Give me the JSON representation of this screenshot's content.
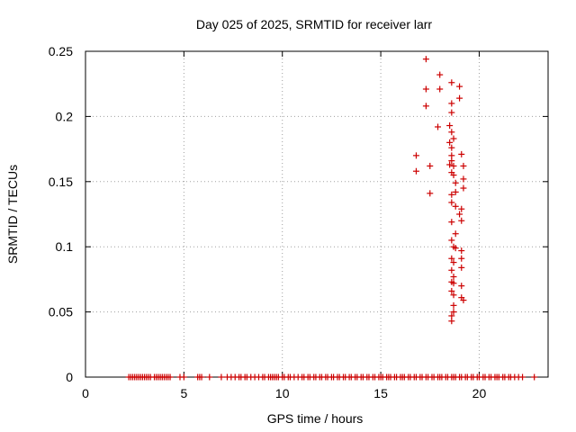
{
  "chart_data": {
    "type": "scatter",
    "title": "Day 025 of 2025, SRMTID for receiver larr",
    "xlabel": "GPS time / hours",
    "ylabel": "SRMTID / TECUs",
    "xlim": [
      0,
      23.5
    ],
    "ylim": [
      0,
      0.25
    ],
    "xticks": [
      0,
      5,
      10,
      15,
      20
    ],
    "xtick_labels": [
      "0",
      "5",
      "10",
      "15",
      "20"
    ],
    "yticks": [
      0,
      0.05,
      0.1,
      0.15,
      0.2,
      0.25
    ],
    "ytick_labels": [
      "0",
      "0.05",
      "0.1",
      "0.15",
      "0.2",
      "0.25"
    ],
    "grid": true,
    "marker": "+",
    "series": [
      {
        "name": "SRMTID",
        "color": "#cc0000",
        "zero_x": [
          2.2,
          2.3,
          2.4,
          2.5,
          2.6,
          2.7,
          2.8,
          2.9,
          3.0,
          3.1,
          3.2,
          3.3,
          3.5,
          3.6,
          3.7,
          3.8,
          3.9,
          4.0,
          4.1,
          4.2,
          4.3,
          4.8,
          5.0,
          5.7,
          5.8,
          5.9,
          6.3,
          6.9,
          7.2,
          7.4,
          7.6,
          7.8,
          7.9,
          8.1,
          8.2,
          8.4,
          8.6,
          8.8,
          9.0,
          9.1,
          9.3,
          9.4,
          9.5,
          9.6,
          9.7,
          9.8,
          10.0,
          10.1,
          10.3,
          10.4,
          10.6,
          10.8,
          11.0,
          11.1,
          11.3,
          11.4,
          11.6,
          11.7,
          11.9,
          12.0,
          12.2,
          12.3,
          12.5,
          12.6,
          12.8,
          12.9,
          13.1,
          13.2,
          13.4,
          13.5,
          13.7,
          13.8,
          14.0,
          14.1,
          14.3,
          14.4,
          14.6,
          14.7,
          14.9,
          15.0,
          15.1,
          15.3,
          15.4,
          15.5,
          15.7,
          15.8,
          16.0,
          16.1,
          16.2,
          16.4,
          16.5,
          16.7,
          16.8,
          17.0,
          17.1,
          17.3,
          17.4,
          17.6,
          17.7,
          17.9,
          18.0,
          18.1,
          18.3,
          18.4,
          18.6,
          18.7,
          18.8,
          19.0,
          19.1,
          19.3,
          19.4,
          19.6,
          19.7,
          19.9,
          20.0,
          20.2,
          20.3,
          20.5,
          20.6,
          20.8,
          20.9,
          21.0,
          21.2,
          21.3,
          21.5,
          21.6,
          21.8,
          22.0,
          22.2,
          22.8
        ],
        "points": [
          [
            17.3,
            0.244
          ],
          [
            17.3,
            0.221
          ],
          [
            18.0,
            0.232
          ],
          [
            18.0,
            0.221
          ],
          [
            18.6,
            0.226
          ],
          [
            19.0,
            0.223
          ],
          [
            19.0,
            0.214
          ],
          [
            17.3,
            0.208
          ],
          [
            18.6,
            0.21
          ],
          [
            18.6,
            0.203
          ],
          [
            17.9,
            0.192
          ],
          [
            18.5,
            0.193
          ],
          [
            18.6,
            0.188
          ],
          [
            18.7,
            0.183
          ],
          [
            18.5,
            0.18
          ],
          [
            18.6,
            0.176
          ],
          [
            18.6,
            0.17
          ],
          [
            16.8,
            0.17
          ],
          [
            19.1,
            0.171
          ],
          [
            18.6,
            0.166
          ],
          [
            18.5,
            0.163
          ],
          [
            18.7,
            0.162
          ],
          [
            17.5,
            0.162
          ],
          [
            19.2,
            0.162
          ],
          [
            16.8,
            0.158
          ],
          [
            18.6,
            0.157
          ],
          [
            18.7,
            0.155
          ],
          [
            19.2,
            0.152
          ],
          [
            18.8,
            0.149
          ],
          [
            19.2,
            0.145
          ],
          [
            17.5,
            0.141
          ],
          [
            18.6,
            0.14
          ],
          [
            18.8,
            0.142
          ],
          [
            18.6,
            0.134
          ],
          [
            18.8,
            0.131
          ],
          [
            19.1,
            0.129
          ],
          [
            19.0,
            0.125
          ],
          [
            19.1,
            0.12
          ],
          [
            18.6,
            0.119
          ],
          [
            18.8,
            0.11
          ],
          [
            18.6,
            0.105
          ],
          [
            18.7,
            0.1
          ],
          [
            18.8,
            0.099
          ],
          [
            19.1,
            0.097
          ],
          [
            18.6,
            0.091
          ],
          [
            19.1,
            0.091
          ],
          [
            18.7,
            0.088
          ],
          [
            18.6,
            0.082
          ],
          [
            19.1,
            0.084
          ],
          [
            18.7,
            0.077
          ],
          [
            18.6,
            0.073
          ],
          [
            18.7,
            0.072
          ],
          [
            19.1,
            0.07
          ],
          [
            18.6,
            0.066
          ],
          [
            18.7,
            0.063
          ],
          [
            19.1,
            0.061
          ],
          [
            19.2,
            0.059
          ],
          [
            18.7,
            0.055
          ],
          [
            18.7,
            0.05
          ],
          [
            18.6,
            0.047
          ],
          [
            18.6,
            0.043
          ]
        ]
      }
    ]
  }
}
